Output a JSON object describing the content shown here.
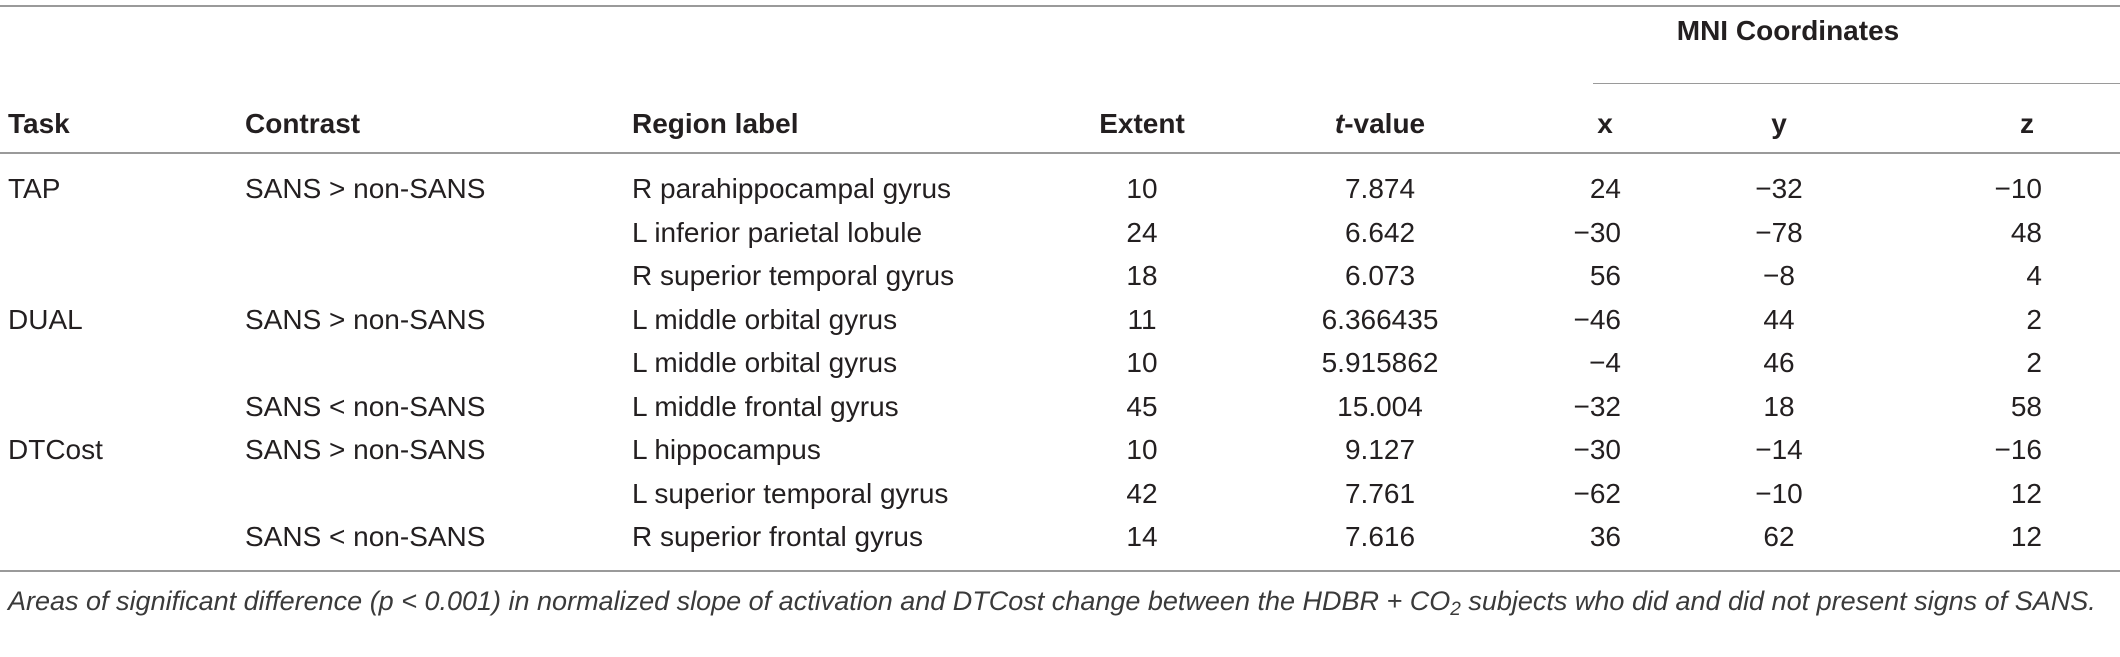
{
  "table": {
    "group_header": "MNI Coordinates",
    "headers": {
      "task": "Task",
      "contrast": "Contrast",
      "region": "Region label",
      "extent": "Extent",
      "t_italic": "t",
      "t_rest": "-value",
      "x": "x",
      "y": "y",
      "z": "z"
    },
    "rows": [
      {
        "task": "TAP",
        "contrast": "SANS > non-SANS",
        "region": "R parahippocampal gyrus",
        "extent": "10",
        "t": "7.874",
        "x": "24",
        "y": "−32",
        "z": "−10"
      },
      {
        "task": "",
        "contrast": "",
        "region": "L inferior parietal lobule",
        "extent": "24",
        "t": "6.642",
        "x": "−30",
        "y": "−78",
        "z": "48"
      },
      {
        "task": "",
        "contrast": "",
        "region": "R superior temporal gyrus",
        "extent": "18",
        "t": "6.073",
        "x": "56",
        "y": "−8",
        "z": "4"
      },
      {
        "task": "DUAL",
        "contrast": "SANS > non-SANS",
        "region": "L middle orbital gyrus",
        "extent": "11",
        "t": "6.366435",
        "x": "−46",
        "y": "44",
        "z": "2"
      },
      {
        "task": "",
        "contrast": "",
        "region": "L middle orbital gyrus",
        "extent": "10",
        "t": "5.915862",
        "x": "−4",
        "y": "46",
        "z": "2"
      },
      {
        "task": "",
        "contrast": "SANS < non-SANS",
        "region": "L middle frontal gyrus",
        "extent": "45",
        "t": "15.004",
        "x": "−32",
        "y": "18",
        "z": "58"
      },
      {
        "task": "DTCost",
        "contrast": "SANS > non-SANS",
        "region": "L hippocampus",
        "extent": "10",
        "t": "9.127",
        "x": "−30",
        "y": "−14",
        "z": "−16"
      },
      {
        "task": "",
        "contrast": "",
        "region": "L superior temporal gyrus",
        "extent": "42",
        "t": "7.761",
        "x": "−62",
        "y": "−10",
        "z": "12"
      },
      {
        "task": "",
        "contrast": "SANS < non-SANS",
        "region": "R superior frontal gyrus",
        "extent": "14",
        "t": "7.616",
        "x": "36",
        "y": "62",
        "z": "12"
      }
    ]
  },
  "caption": {
    "part1": "Areas of significant difference (p < 0.001) in normalized slope of activation and DTCost change between the HDBR + CO",
    "subscript": "2",
    "part2": " subjects who did and did not present signs of SANS."
  }
}
